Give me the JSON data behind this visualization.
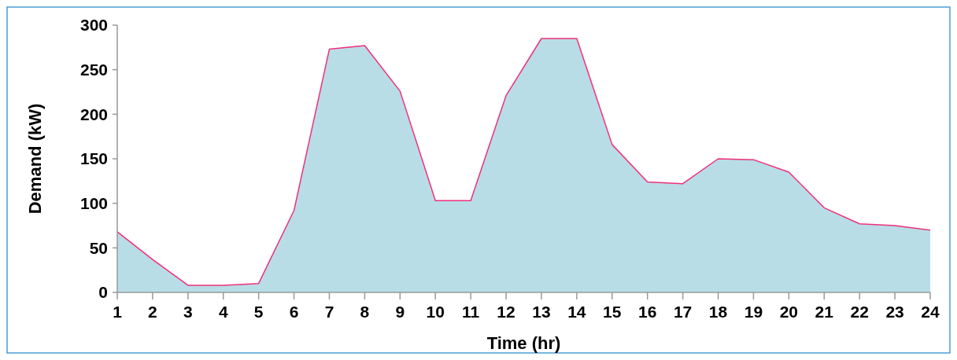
{
  "chart_data": {
    "type": "area",
    "xlabel": "Time (hr)",
    "ylabel": "Demand (kW)",
    "x": [
      1,
      2,
      3,
      4,
      5,
      6,
      7,
      8,
      9,
      10,
      11,
      12,
      13,
      14,
      15,
      16,
      17,
      18,
      19,
      20,
      21,
      22,
      23,
      24
    ],
    "series": [
      {
        "color": "#b8dde7",
        "values": [
          68,
          37,
          8,
          8,
          10,
          92,
          273,
          277,
          226,
          103,
          103,
          221,
          285,
          285,
          166,
          124,
          122,
          150,
          149,
          135,
          95,
          77,
          75,
          70
        ]
      },
      {
        "type": "line",
        "color": "#f0307a",
        "values": [
          68,
          37,
          8,
          8,
          10,
          92,
          273,
          277,
          226,
          103,
          103,
          221,
          285,
          285,
          166,
          124,
          122,
          150,
          149,
          135,
          95,
          77,
          75,
          70
        ]
      }
    ],
    "xlim": [
      1,
      24
    ],
    "xticks": [
      1,
      2,
      3,
      4,
      5,
      6,
      7,
      8,
      9,
      10,
      11,
      12,
      13,
      14,
      15,
      16,
      17,
      18,
      19,
      20,
      21,
      22,
      23,
      24
    ],
    "ylim": [
      0,
      300
    ],
    "yticks": [
      0,
      50,
      100,
      150,
      200,
      250,
      300
    ],
    "grid": false
  }
}
